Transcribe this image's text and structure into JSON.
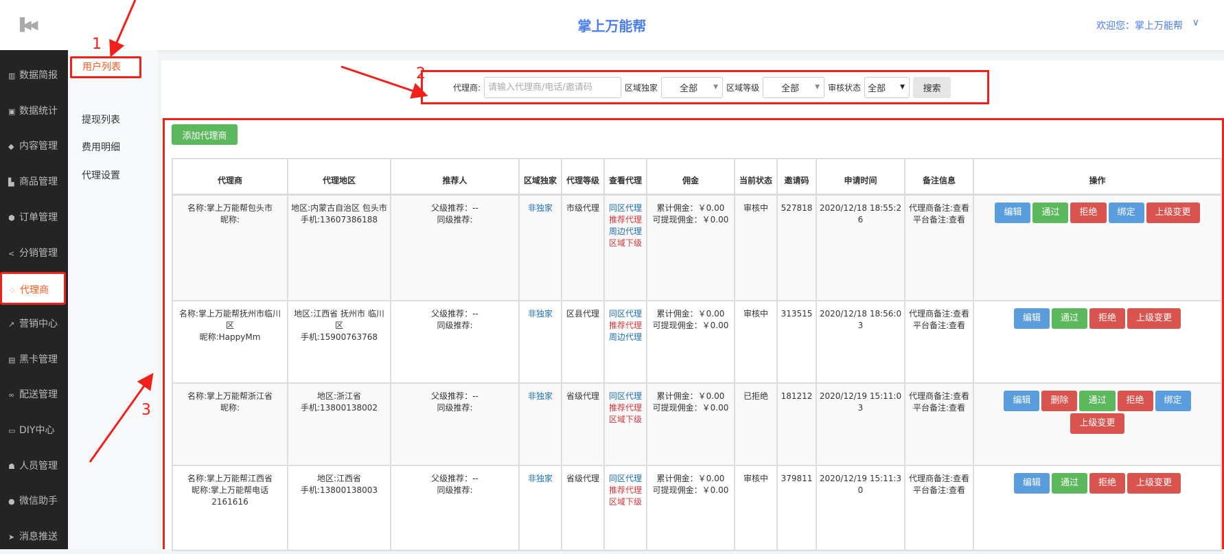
{
  "header": {
    "collapse_icon": "skip-back-icon",
    "title": "掌上万能帮",
    "welcome": "欢迎您：掌上万能帮",
    "chevron": "chevron-down-icon"
  },
  "sidebar": {
    "items": [
      {
        "label": "数据简报",
        "icon": "bar-chart-icon",
        "glyph": "▥"
      },
      {
        "label": "数据统计",
        "icon": "stats-icon",
        "glyph": "▣"
      },
      {
        "label": "内容管理",
        "icon": "tag-icon",
        "glyph": "◆"
      },
      {
        "label": "商品管理",
        "icon": "bag-icon",
        "glyph": "▙"
      },
      {
        "label": "订单管理",
        "icon": "cube-icon",
        "glyph": "⬢"
      },
      {
        "label": "分销管理",
        "icon": "share-icon",
        "glyph": "<"
      },
      {
        "label": "代理商",
        "icon": "diamond-icon",
        "glyph": "♢",
        "active": true
      },
      {
        "label": "营销中心",
        "icon": "line-chart-icon",
        "glyph": "↗"
      },
      {
        "label": "黑卡管理",
        "icon": "card-icon",
        "glyph": "▤"
      },
      {
        "label": "配送管理",
        "icon": "motorcycle-icon",
        "glyph": "∞"
      },
      {
        "label": "DIY中心",
        "icon": "monitor-icon",
        "glyph": "▭"
      },
      {
        "label": "人员管理",
        "icon": "users-icon",
        "glyph": "☗"
      },
      {
        "label": "微信助手",
        "icon": "wechat-icon",
        "glyph": "●"
      },
      {
        "label": "消息推送",
        "icon": "paper-plane-icon",
        "glyph": "➤"
      }
    ]
  },
  "submenu": {
    "items": [
      "用户列表",
      "提现列表",
      "费用明细",
      "代理设置"
    ]
  },
  "search": {
    "agent_label": "代理商:",
    "agent_placeholder": "请输入代理商/电话/邀请码",
    "exclusive_label": "区域独家",
    "exclusive_value": "全部",
    "level_label": "区域等级",
    "level_value": "全部",
    "status_label": "审核状态",
    "status_value": "全部",
    "search_button": "搜索"
  },
  "add_button": "添加代理商",
  "table": {
    "headers": [
      "代理商",
      "代理地区",
      "推荐人",
      "区域独家",
      "代理等级",
      "查看代理",
      "佣金",
      "当前状态",
      "邀请码",
      "申请时间",
      "备注信息",
      "操作"
    ],
    "rows": [
      {
        "agent": [
          "名称:掌上万能帮包头市",
          "昵称:"
        ],
        "region": [
          "地区:内蒙古自治区 包头市",
          "手机:13607386188"
        ],
        "ref": [
          "父级推荐：--",
          "同级推荐:"
        ],
        "exclusive": "非独家",
        "level": "市级代理",
        "view": [
          [
            "同区代理",
            "blue"
          ],
          [
            "推荐代理",
            "red"
          ],
          [
            "周边代理",
            "blue"
          ],
          [
            "区域下级",
            "red"
          ]
        ],
        "commission": [
          "累计佣金：￥0.00",
          "可提现佣金：￥0.00"
        ],
        "status": "审核中",
        "code": "527818",
        "time": "2020/12/18 18:55:26",
        "remark": [
          "代理商备注:查看",
          "平台备注:查看"
        ],
        "buttons": [
          [
            "编辑",
            "blue-b"
          ],
          [
            "通过",
            "green-b"
          ],
          [
            "拒绝",
            "red-b"
          ],
          [
            "绑定",
            "blue-b"
          ],
          [
            "上级变更",
            "red-b"
          ]
        ]
      },
      {
        "agent": [
          "名称:掌上万能帮抚州市临川区",
          "昵称:HappyMm"
        ],
        "region": [
          "地区:江西省 抚州市 临川区",
          "手机:15900763768"
        ],
        "ref": [
          "父级推荐：--",
          "同级推荐:"
        ],
        "exclusive": "非独家",
        "level": "区县代理",
        "view": [
          [
            "同区代理",
            "blue"
          ],
          [
            "推荐代理",
            "red"
          ],
          [
            "周边代理",
            "blue"
          ]
        ],
        "commission": [
          "累计佣金：￥0.00",
          "可提现佣金：￥0.00"
        ],
        "status": "审核中",
        "code": "313515",
        "time": "2020/12/18 18:56:03",
        "remark": [
          "代理商备注:查看",
          "平台备注:查看"
        ],
        "buttons": [
          [
            "编辑",
            "blue-b"
          ],
          [
            "通过",
            "green-b"
          ],
          [
            "拒绝",
            "red-b"
          ],
          [
            "上级变更",
            "red-b"
          ]
        ]
      },
      {
        "agent": [
          "名称:掌上万能帮浙江省",
          "昵称:"
        ],
        "region": [
          "地区:浙江省",
          "手机:13800138002"
        ],
        "ref": [
          "父级推荐：--",
          "同级推荐:"
        ],
        "exclusive": "非独家",
        "level": "省级代理",
        "view": [
          [
            "同区代理",
            "blue"
          ],
          [
            "推荐代理",
            "red"
          ],
          [
            "区域下级",
            "red"
          ]
        ],
        "commission": [
          "累计佣金：￥0.00",
          "可提现佣金：￥0.00"
        ],
        "status": "已拒绝",
        "code": "181212",
        "time": "2020/12/19 15:11:03",
        "remark": [
          "代理商备注:查看",
          "平台备注:查看"
        ],
        "buttons": [
          [
            "编辑",
            "blue-b"
          ],
          [
            "删除",
            "red-b"
          ],
          [
            "通过",
            "green-b"
          ],
          [
            "拒绝",
            "red-b"
          ],
          [
            "绑定",
            "blue-b"
          ],
          [
            "上级变更",
            "red-b"
          ]
        ]
      },
      {
        "agent": [
          "名称:掌上万能帮江西省",
          "昵称:掌上万能帮电话2161616"
        ],
        "region": [
          "地区:江西省",
          "手机:13800138003"
        ],
        "ref": [
          "父级推荐：--",
          "同级推荐:"
        ],
        "exclusive": "非独家",
        "level": "省级代理",
        "view": [
          [
            "同区代理",
            "blue"
          ],
          [
            "推荐代理",
            "red"
          ],
          [
            "区域下级",
            "red"
          ]
        ],
        "commission": [
          "累计佣金：￥0.00",
          "可提现佣金：￥0.00"
        ],
        "status": "审核中",
        "code": "379811",
        "time": "2020/12/19 15:11:30",
        "remark": [
          "代理商备注:查看",
          "平台备注:查看"
        ],
        "buttons": [
          [
            "编辑",
            "blue-b"
          ],
          [
            "通过",
            "green-b"
          ],
          [
            "拒绝",
            "red-b"
          ],
          [
            "上级变更",
            "red-b"
          ]
        ]
      }
    ]
  },
  "annotations": [
    "1",
    "2",
    "3"
  ],
  "colors": {
    "accent": "#4a7ef0",
    "active": "#ff5a1f",
    "annotation": "#f0201a",
    "green": "#5cb85c",
    "red": "#d9534f",
    "blue": "#5a9ddf"
  }
}
